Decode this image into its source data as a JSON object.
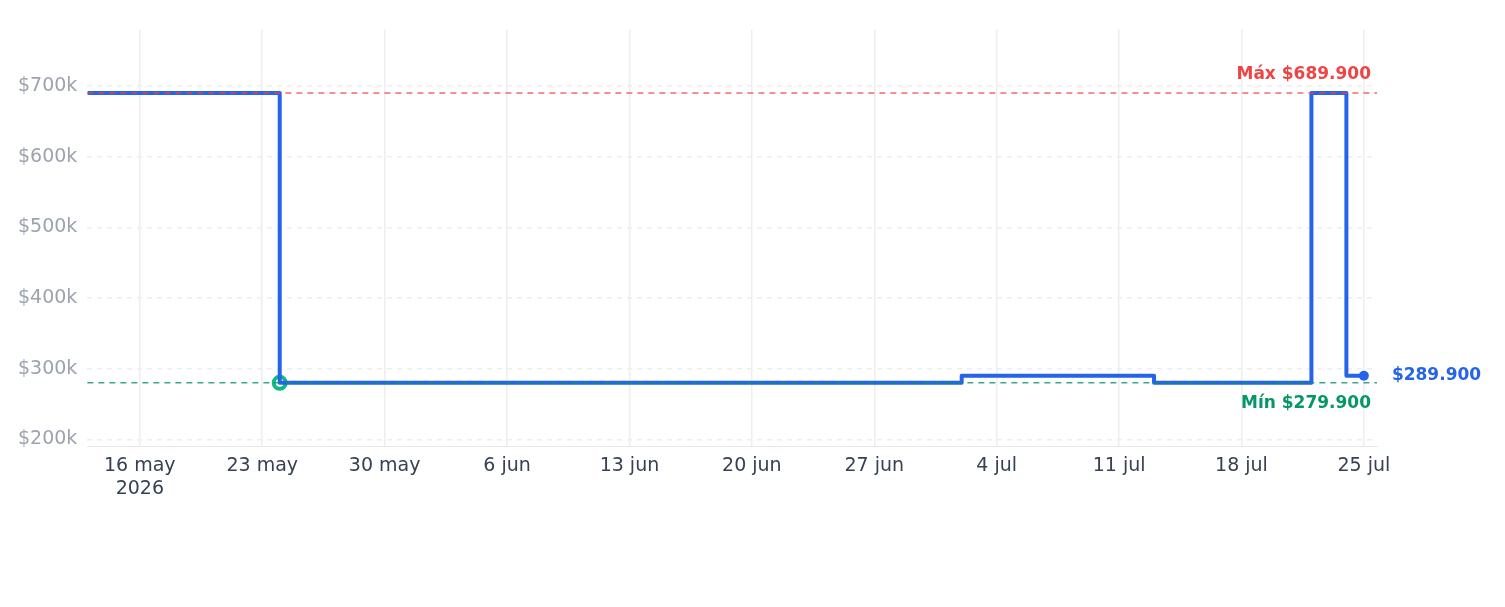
{
  "chart_data": {
    "type": "step",
    "xlim": [
      "2026-05-13",
      "2026-07-25T18:00"
    ],
    "xticks": [
      {
        "value": "2026-05-16",
        "label": "16 may\n2026"
      },
      {
        "value": "2026-05-23",
        "label": "23 may"
      },
      {
        "value": "2026-05-30",
        "label": "30 may"
      },
      {
        "value": "2026-06-06",
        "label": "6 jun"
      },
      {
        "value": "2026-06-13",
        "label": "13 jun"
      },
      {
        "value": "2026-06-20",
        "label": "20 jun"
      },
      {
        "value": "2026-06-27",
        "label": "27 jun"
      },
      {
        "value": "2026-07-04",
        "label": "4 jul"
      },
      {
        "value": "2026-07-11",
        "label": "11 jul"
      },
      {
        "value": "2026-07-18",
        "label": "18 jul"
      },
      {
        "value": "2026-07-25",
        "label": "25 jul"
      }
    ],
    "ylim": [
      190000,
      780000
    ],
    "yticks": [
      {
        "value": 200000,
        "label": "$200k"
      },
      {
        "value": 300000,
        "label": "$300k"
      },
      {
        "value": 400000,
        "label": "$400k"
      },
      {
        "value": 500000,
        "label": "$500k"
      },
      {
        "value": 600000,
        "label": "$600k"
      },
      {
        "value": 700000,
        "label": "$700k"
      }
    ],
    "series": [
      {
        "color": "#2563eb",
        "x": [
          "2026-05-13",
          "2026-05-24",
          "2026-07-02",
          "2026-07-13",
          "2026-07-22",
          "2026-07-24",
          "2026-07-25"
        ],
        "values": [
          689900,
          279900,
          289900,
          279900,
          689900,
          289900,
          289900
        ],
        "marker": "none"
      },
      {
        "type": "scatter",
        "color": "#10b981",
        "x": [
          "2026-05-24"
        ],
        "values": [
          279900
        ],
        "marker": "circle"
      },
      {
        "type": "scatter",
        "color": "#2563eb",
        "x": [
          "2026-07-25"
        ],
        "values": [
          289900
        ],
        "marker": "circle"
      }
    ],
    "ref_lines": [
      {
        "axis": "y",
        "value": 689900,
        "label": "Máx $689.900",
        "color": "#ef4444",
        "line_style": "dashed"
      },
      {
        "axis": "y",
        "value": 279900,
        "label": "Mín $279.900",
        "color": "#059669",
        "line_style": "dashed"
      }
    ],
    "annotations": [
      {
        "text": "$289.900",
        "x": "2026-07-25",
        "y": 289900
      }
    ],
    "grid": true
  }
}
